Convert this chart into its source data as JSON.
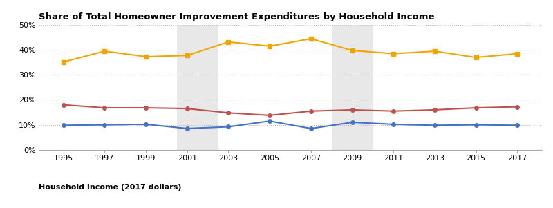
{
  "title": "Share of Total Homeowner Improvement Expenditures by Household Income",
  "years": [
    1995,
    1997,
    1999,
    2001,
    2003,
    2005,
    2007,
    2009,
    2011,
    2013,
    2015,
    2017
  ],
  "bottom_quintile": [
    9.8,
    10.0,
    10.2,
    8.5,
    9.2,
    11.5,
    8.5,
    11.0,
    10.2,
    9.8,
    10.0,
    9.8
  ],
  "middle_quintile": [
    18.0,
    16.8,
    16.8,
    16.5,
    14.8,
    13.8,
    15.5,
    16.0,
    15.5,
    16.0,
    16.8,
    17.2
  ],
  "top_quintile": [
    35.2,
    39.5,
    37.3,
    37.8,
    43.2,
    41.5,
    44.5,
    39.8,
    38.5,
    39.5,
    37.0,
    38.5
  ],
  "bottom_color": "#4472c4",
  "middle_color": "#c0504d",
  "top_color": "#f0a500",
  "recession1_start": 2000.5,
  "recession1_end": 2002.5,
  "recession2_start": 2008.0,
  "recession2_end": 2010.0,
  "xlabel": "Household Income (2017 dollars)",
  "ylim": [
    0,
    50
  ],
  "yticks": [
    0,
    10,
    20,
    30,
    40,
    50
  ],
  "xlim": [
    1993.8,
    2018.2
  ],
  "background_color": "#ffffff",
  "recession_color": "#e8e8e8",
  "grid_color": "#bbbbbb",
  "title_fontsize": 9.5,
  "tick_fontsize": 8,
  "legend_fontsize": 8,
  "xlabel_fontsize": 8,
  "marker_size": 4,
  "linewidth": 1.5
}
